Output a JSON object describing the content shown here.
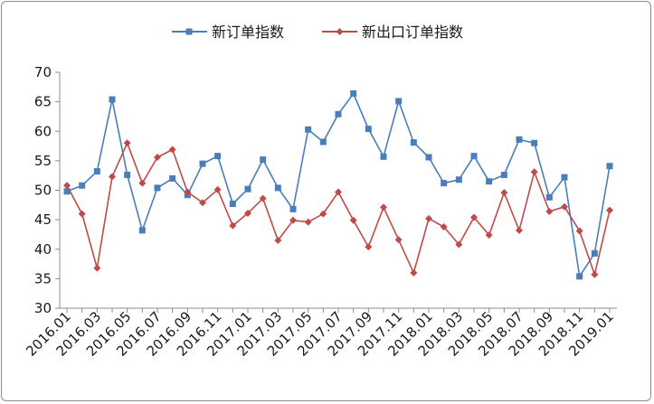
{
  "chart_data": {
    "type": "line",
    "x": [
      "2016.01",
      "2016.02",
      "2016.03",
      "2016.04",
      "2016.05",
      "2016.06",
      "2016.07",
      "2016.08",
      "2016.09",
      "2016.10",
      "2016.11",
      "2016.12",
      "2017.01",
      "2017.02",
      "2017.03",
      "2017.04",
      "2017.05",
      "2017.06",
      "2017.07",
      "2017.08",
      "2017.09",
      "2017.10",
      "2017.11",
      "2017.12",
      "2018.01",
      "2018.02",
      "2018.03",
      "2018.04",
      "2018.05",
      "2018.06",
      "2018.07",
      "2018.08",
      "2018.09",
      "2018.10",
      "2018.11",
      "2018.12",
      "2019.01"
    ],
    "x_tick_labels": [
      "2016.01",
      "2016.03",
      "2016.05",
      "2016.07",
      "2016.09",
      "2016.11",
      "2017.01",
      "2017.03",
      "2017.05",
      "2017.07",
      "2017.09",
      "2017.11",
      "2018.01",
      "2018.03",
      "2018.05",
      "2018.07",
      "2018.09",
      "2018.11",
      "2019.01"
    ],
    "y_tick_labels": [
      "30",
      "35",
      "40",
      "45",
      "50",
      "55",
      "60",
      "65",
      "70"
    ],
    "ylim": [
      30,
      70
    ],
    "grid": false,
    "legend_position": "top",
    "series": [
      {
        "name": "新订单指数",
        "color": "#4a7ebb",
        "marker": "square",
        "values": [
          49.8,
          50.8,
          53.2,
          65.4,
          52.6,
          43.2,
          50.4,
          52.0,
          49.2,
          54.5,
          55.8,
          47.7,
          50.2,
          55.2,
          50.4,
          46.8,
          60.3,
          58.2,
          62.9,
          66.4,
          60.4,
          55.7,
          65.1,
          58.1,
          55.6,
          51.2,
          51.8,
          55.8,
          51.5,
          52.6,
          58.6,
          58.0,
          48.8,
          52.2,
          35.4,
          39.3,
          54.1
        ]
      },
      {
        "name": "新出口订单指数",
        "color": "#be4b48",
        "marker": "diamond",
        "values": [
          50.8,
          46.0,
          36.8,
          52.3,
          58.0,
          51.2,
          55.6,
          56.9,
          49.7,
          47.9,
          50.1,
          44.0,
          46.1,
          48.6,
          41.5,
          44.9,
          44.6,
          46.0,
          49.7,
          44.9,
          40.4,
          47.1,
          41.6,
          36.0,
          45.2,
          43.8,
          40.8,
          45.4,
          42.4,
          49.6,
          43.2,
          53.1,
          46.4,
          47.2,
          43.1,
          35.7,
          46.6
        ]
      }
    ]
  }
}
